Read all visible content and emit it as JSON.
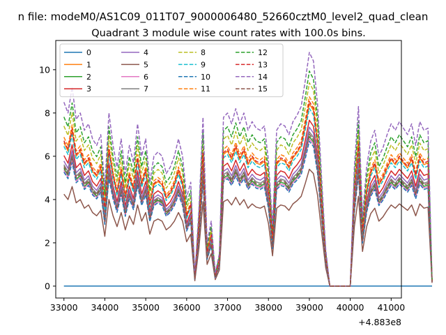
{
  "suptitle": "n file: modeM0/AS1C09_011T07_9000006480_52660cztM0_level2_quad_clean",
  "chart_data": {
    "type": "line",
    "title": "Quadrant 3 module wise count rates with 100.0s bins.",
    "xlabel": "",
    "ylabel": "",
    "x_offset_label": "+4.883e8",
    "xlim": [
      32800,
      41250
    ],
    "ylim": [
      -0.55,
      11.35
    ],
    "x_ticks": [
      33000,
      34000,
      35000,
      36000,
      37000,
      38000,
      39000,
      40000,
      41000
    ],
    "x_tick_labels": [
      "33000",
      "34000",
      "35000",
      "36000",
      "37000",
      "38000",
      "39000",
      "40000",
      "41000"
    ],
    "y_ticks": [
      0,
      2,
      4,
      6,
      8,
      10
    ],
    "y_tick_labels": [
      "0",
      "2",
      "4",
      "6",
      "8",
      "10"
    ],
    "grid": false,
    "legend": {
      "placement": "top-left",
      "columns": 4
    },
    "x_start": 33000,
    "x_step": 100,
    "envelope": [
      0.85,
      0.8,
      0.92,
      0.77,
      0.8,
      0.72,
      0.75,
      0.68,
      0.65,
      0.7,
      0.46,
      0.8,
      0.65,
      0.55,
      0.68,
      0.52,
      0.65,
      0.57,
      0.75,
      0.6,
      0.68,
      0.48,
      0.6,
      0.62,
      0.6,
      0.52,
      0.55,
      0.6,
      0.68,
      0.6,
      0.41,
      0.48,
      0.05,
      0.35,
      0.78,
      0.2,
      0.3,
      0.06,
      0.15,
      0.78,
      0.8,
      0.75,
      0.82,
      0.75,
      0.8,
      0.72,
      0.76,
      0.73,
      0.72,
      0.74,
      0.58,
      0.28,
      0.72,
      0.75,
      0.74,
      0.7,
      0.76,
      0.79,
      0.83,
      0.95,
      1.08,
      1.04,
      0.84,
      0.5,
      0.17,
      0.0,
      0.0,
      0.0,
      0.0,
      0.0,
      0.0,
      0.55,
      0.83,
      0.32,
      0.55,
      0.67,
      0.72,
      0.6,
      0.64,
      0.7,
      0.75,
      0.72,
      0.76,
      0.73,
      0.7,
      0.75,
      0.65,
      0.76,
      0.72,
      0.73,
      0.03
    ],
    "series": [
      {
        "name": "0",
        "color": "#1f77b4",
        "dash": "solid",
        "scale": 0.0
      },
      {
        "name": "1",
        "color": "#ff7f0e",
        "dash": "solid",
        "scale": 7.8
      },
      {
        "name": "2",
        "color": "#2ca02c",
        "dash": "solid",
        "scale": 6.4
      },
      {
        "name": "3",
        "color": "#d62728",
        "dash": "solid",
        "scale": 7.1
      },
      {
        "name": "4",
        "color": "#9467bd",
        "dash": "solid",
        "scale": 6.8
      },
      {
        "name": "5",
        "color": "#8c564b",
        "dash": "solid",
        "scale": 5.0
      },
      {
        "name": "6",
        "color": "#e377c2",
        "dash": "solid",
        "scale": 6.3
      },
      {
        "name": "7",
        "color": "#7f7f7f",
        "dash": "solid",
        "scale": 6.6
      },
      {
        "name": "8",
        "color": "#bcbd22",
        "dash": "dashed",
        "scale": 8.7
      },
      {
        "name": "9",
        "color": "#17becf",
        "dash": "dashed",
        "scale": 7.6
      },
      {
        "name": "10",
        "color": "#1f77b4",
        "dash": "dashed",
        "scale": 6.2
      },
      {
        "name": "11",
        "color": "#ff7f0e",
        "dash": "dashed",
        "scale": 8.1
      },
      {
        "name": "12",
        "color": "#2ca02c",
        "dash": "dashed",
        "scale": 9.2
      },
      {
        "name": "13",
        "color": "#d62728",
        "dash": "dashed",
        "scale": 7.9
      },
      {
        "name": "14",
        "color": "#9467bd",
        "dash": "dashed",
        "scale": 10.0
      },
      {
        "name": "15",
        "color": "#8c564b",
        "dash": "dashed",
        "scale": 6.5
      }
    ]
  }
}
